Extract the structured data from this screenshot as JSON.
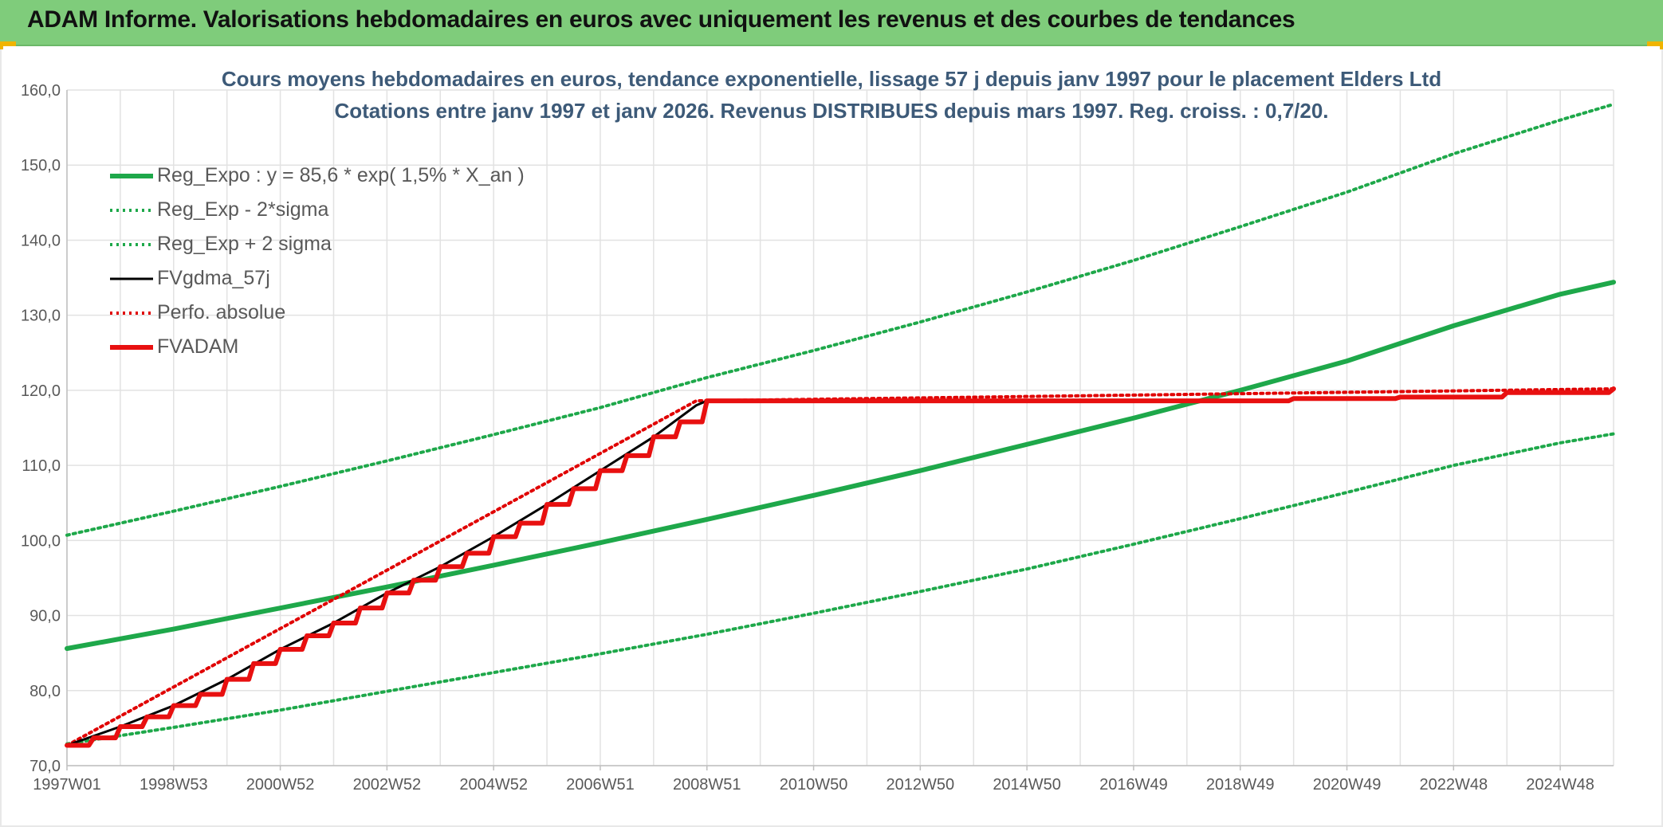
{
  "header": {
    "title": "ADAM Informe. Valorisations hebdomadaires en euros avec uniquement les revenus et des courbes de tendances"
  },
  "chart": {
    "title_line1": "Cours moyens hebdomadaires en euros, tendance exponentielle, lissage 57 j depuis janv 1997 pour le placement Elders Ltd",
    "title_line2": "Cotations entre janv 1997 et janv 2026. Revenus DISTRIBUES depuis mars 1997. Reg. croiss. : 0,7/20."
  },
  "chart_data": {
    "type": "line",
    "title": "Cours moyens hebdomadaires en euros, tendance exponentielle, lissage 57 j depuis janv 1997 pour le placement Elders Ltd",
    "subtitle": "Cotations entre janv 1997 et janv 2026. Revenus DISTRIBUES depuis mars 1997. Reg. croiss. : 0,7/20.",
    "xlabel": "",
    "ylabel": "",
    "x_range": [
      1997.0,
      2026.0
    ],
    "ylim": [
      70,
      160
    ],
    "y_ticks": [
      "70,0",
      "80,0",
      "90,0",
      "100,0",
      "110,0",
      "120,0",
      "130,0",
      "140,0",
      "150,0",
      "160,0"
    ],
    "x_ticks": [
      {
        "label": "1997W01",
        "year": 1997.0
      },
      {
        "label": "1998W53",
        "year": 1999.0
      },
      {
        "label": "2000W52",
        "year": 2001.0
      },
      {
        "label": "2002W52",
        "year": 2003.0
      },
      {
        "label": "2004W52",
        "year": 2005.0
      },
      {
        "label": "2006W51",
        "year": 2007.0
      },
      {
        "label": "2008W51",
        "year": 2009.0
      },
      {
        "label": "2010W50",
        "year": 2011.0
      },
      {
        "label": "2012W50",
        "year": 2013.0
      },
      {
        "label": "2014W50",
        "year": 2015.0
      },
      {
        "label": "2016W49",
        "year": 2017.0
      },
      {
        "label": "2018W49",
        "year": 2019.0
      },
      {
        "label": "2020W49",
        "year": 2021.0
      },
      {
        "label": "2022W48",
        "year": 2023.0
      },
      {
        "label": "2024W48",
        "year": 2025.0
      }
    ],
    "grid": true,
    "legend_position": "top-left",
    "series": [
      {
        "name": "Reg_Expo : y = 85,6 * exp( 1,5% *  X_an )",
        "color": "#1ea84a",
        "style": "solid-thick",
        "x": [
          1997,
          1999,
          2001,
          2003,
          2005,
          2007,
          2009,
          2011,
          2013,
          2015,
          2017,
          2019,
          2021,
          2023,
          2025,
          2026
        ],
        "y": [
          85.6,
          88.2,
          91.0,
          93.8,
          96.7,
          99.7,
          102.8,
          106.0,
          109.3,
          112.8,
          116.3,
          120.0,
          123.9,
          128.6,
          132.8,
          134.4
        ]
      },
      {
        "name": "Reg_Exp - 2*sigma",
        "color": "#1ea84a",
        "style": "dotted",
        "x": [
          1997,
          1999,
          2001,
          2003,
          2005,
          2007,
          2009,
          2011,
          2013,
          2015,
          2017,
          2019,
          2021,
          2023,
          2025,
          2026
        ],
        "y": [
          72.9,
          75.1,
          77.4,
          79.9,
          82.4,
          84.9,
          87.5,
          90.3,
          93.2,
          96.2,
          99.5,
          102.9,
          106.4,
          110.0,
          113.0,
          114.2
        ]
      },
      {
        "name": "Reg_Exp + 2 sigma",
        "color": "#1ea84a",
        "style": "dotted",
        "x": [
          1997,
          1999,
          2001,
          2003,
          2005,
          2007,
          2009,
          2011,
          2013,
          2015,
          2017,
          2019,
          2021,
          2023,
          2025,
          2026
        ],
        "y": [
          100.7,
          103.9,
          107.2,
          110.6,
          114.1,
          117.7,
          121.7,
          125.3,
          129.1,
          133.1,
          137.3,
          141.8,
          146.4,
          151.5,
          156.0,
          158.1
        ]
      },
      {
        "name": "FVgdma_57j",
        "color": "#000000",
        "style": "solid",
        "x": [
          1997.0,
          1998.0,
          1999.0,
          2000.0,
          2001.0,
          2002.0,
          2003.0,
          2004.0,
          2005.0,
          2006.0,
          2007.0,
          2008.0,
          2008.8,
          2009.0
        ],
        "y": [
          72.7,
          75.2,
          78.0,
          81.5,
          85.5,
          89.0,
          93.0,
          96.5,
          100.5,
          104.8,
          109.3,
          113.8,
          118.0,
          118.6
        ]
      },
      {
        "name": "Perfo. absolue",
        "color": "#e00000",
        "style": "dotted",
        "x": [
          1997.0,
          2008.8,
          2026.0
        ],
        "y": [
          72.7,
          118.6,
          120.2
        ]
      },
      {
        "name": "FVADAM",
        "color": "#e81010",
        "style": "solid-thick-step",
        "x": [
          1997.0,
          1997.5,
          1998.0,
          1998.5,
          1999.0,
          1999.5,
          2000.0,
          2000.5,
          2001.0,
          2001.5,
          2002.0,
          2002.5,
          2003.0,
          2003.5,
          2004.0,
          2004.5,
          2005.0,
          2005.5,
          2006.0,
          2006.5,
          2007.0,
          2007.5,
          2008.0,
          2008.5,
          2009.0,
          2018.0,
          2020.0,
          2022.0,
          2024.0,
          2026.0
        ],
        "y": [
          72.7,
          73.7,
          75.2,
          76.5,
          78.0,
          79.5,
          81.5,
          83.6,
          85.5,
          87.3,
          89.0,
          91.0,
          93.0,
          94.7,
          96.5,
          98.3,
          100.5,
          102.3,
          104.8,
          106.9,
          109.3,
          111.3,
          113.8,
          115.8,
          118.6,
          118.6,
          118.9,
          119.1,
          119.7,
          120.2
        ]
      }
    ]
  }
}
